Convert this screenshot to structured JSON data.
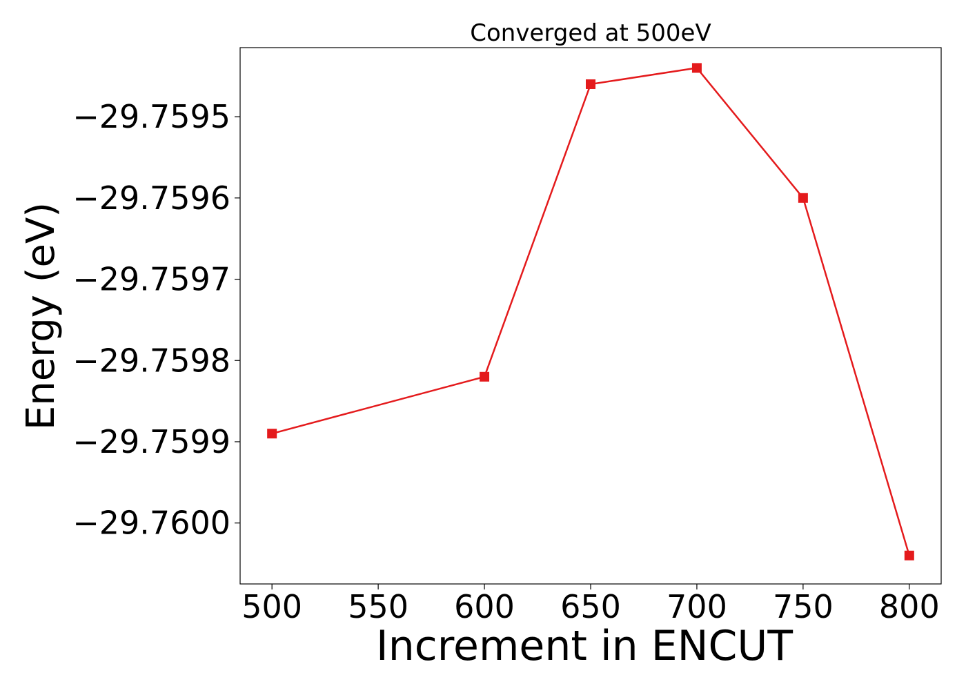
{
  "chart_data": {
    "type": "line",
    "title": "Converged at 500eV",
    "xlabel": "Increment in ENCUT",
    "ylabel": "Energy (eV)",
    "x": [
      500,
      600,
      650,
      700,
      750,
      800
    ],
    "series": [
      {
        "values": [
          -29.75989,
          -29.75982,
          -29.75946,
          -29.75944,
          -29.7596,
          -29.76004
        ],
        "color": "#e41a1c",
        "marker": "square"
      }
    ],
    "xlim": [
      485,
      815
    ],
    "ylim": [
      -29.760075,
      -29.759415
    ],
    "xticks": [
      500,
      550,
      600,
      650,
      700,
      750,
      800
    ],
    "xtick_labels": [
      "500",
      "550",
      "600",
      "650",
      "700",
      "750",
      "800"
    ],
    "yticks": [
      -29.7595,
      -29.7596,
      -29.7597,
      -29.7598,
      -29.7599,
      -29.76
    ],
    "ytick_labels": [
      "−29.7595",
      "−29.7596",
      "−29.7597",
      "−29.7598",
      "−29.7599",
      "−29.7600"
    ],
    "grid": false,
    "legend": "none"
  }
}
